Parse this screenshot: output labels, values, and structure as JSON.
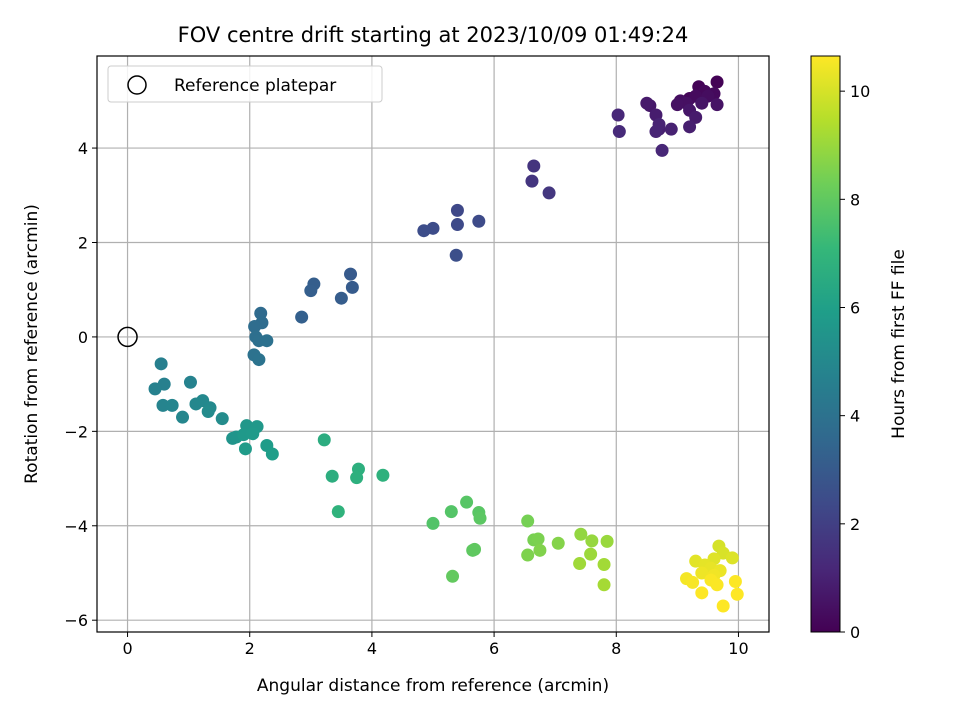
{
  "chart_data": {
    "type": "scatter",
    "title": "FOV centre drift starting at 2023/10/09 01:49:24",
    "xlabel": "Angular distance from reference (arcmin)",
    "ylabel": "Rotation from reference (arcmin)",
    "xlim": [
      -0.5,
      10.5
    ],
    "ylim": [
      -6.25,
      5.95
    ],
    "xticks": [
      0,
      2,
      4,
      6,
      8,
      10
    ],
    "yticks": [
      -6,
      -4,
      -2,
      0,
      2,
      4
    ],
    "grid": true,
    "legend": {
      "location": "upper-left",
      "entries": [
        "Reference platepar"
      ]
    },
    "colorbar": {
      "label": "Hours from first FF file",
      "colormap": "viridis",
      "range": [
        0,
        10.65
      ],
      "ticks": [
        0,
        2,
        4,
        6,
        8,
        10
      ]
    },
    "reference_point": {
      "x": 0,
      "y": 0
    },
    "points": [
      {
        "x": 9.65,
        "y": 5.4,
        "h": 0.05
      },
      {
        "x": 9.35,
        "y": 5.3,
        "h": 0.1
      },
      {
        "x": 9.2,
        "y": 5.05,
        "h": 0.15
      },
      {
        "x": 9.45,
        "y": 5.2,
        "h": 0.2
      },
      {
        "x": 9.6,
        "y": 5.15,
        "h": 0.25
      },
      {
        "x": 9.3,
        "y": 5.1,
        "h": 0.3
      },
      {
        "x": 9.5,
        "y": 5.1,
        "h": 0.35
      },
      {
        "x": 9.05,
        "y": 5.0,
        "h": 0.4
      },
      {
        "x": 9.15,
        "y": 4.95,
        "h": 0.45
      },
      {
        "x": 9.0,
        "y": 4.92,
        "h": 0.5
      },
      {
        "x": 9.65,
        "y": 4.92,
        "h": 0.55
      },
      {
        "x": 9.4,
        "y": 4.95,
        "h": 0.6
      },
      {
        "x": 9.2,
        "y": 4.8,
        "h": 0.65
      },
      {
        "x": 8.55,
        "y": 4.9,
        "h": 0.7
      },
      {
        "x": 8.5,
        "y": 4.95,
        "h": 0.75
      },
      {
        "x": 9.3,
        "y": 4.65,
        "h": 0.8
      },
      {
        "x": 8.65,
        "y": 4.7,
        "h": 0.85
      },
      {
        "x": 9.2,
        "y": 4.45,
        "h": 0.9
      },
      {
        "x": 8.7,
        "y": 4.4,
        "h": 0.95
      },
      {
        "x": 8.9,
        "y": 4.4,
        "h": 1.0
      },
      {
        "x": 8.7,
        "y": 4.5,
        "h": 1.05
      },
      {
        "x": 8.65,
        "y": 4.35,
        "h": 1.1
      },
      {
        "x": 8.75,
        "y": 3.95,
        "h": 1.15
      },
      {
        "x": 8.03,
        "y": 4.7,
        "h": 1.2
      },
      {
        "x": 8.05,
        "y": 4.35,
        "h": 1.25
      },
      {
        "x": 6.65,
        "y": 3.62,
        "h": 1.6
      },
      {
        "x": 6.62,
        "y": 3.3,
        "h": 1.65
      },
      {
        "x": 6.9,
        "y": 3.05,
        "h": 1.7
      },
      {
        "x": 5.4,
        "y": 2.68,
        "h": 2.3
      },
      {
        "x": 5.4,
        "y": 2.38,
        "h": 2.35
      },
      {
        "x": 5.75,
        "y": 2.45,
        "h": 2.4
      },
      {
        "x": 5.0,
        "y": 2.3,
        "h": 2.45
      },
      {
        "x": 4.85,
        "y": 2.25,
        "h": 2.5
      },
      {
        "x": 5.38,
        "y": 1.73,
        "h": 2.55
      },
      {
        "x": 3.65,
        "y": 1.33,
        "h": 3.0
      },
      {
        "x": 3.68,
        "y": 1.05,
        "h": 3.05
      },
      {
        "x": 3.5,
        "y": 0.82,
        "h": 3.1
      },
      {
        "x": 3.05,
        "y": 1.12,
        "h": 3.15
      },
      {
        "x": 3.0,
        "y": 0.98,
        "h": 3.2
      },
      {
        "x": 2.85,
        "y": 0.42,
        "h": 3.25
      },
      {
        "x": 2.18,
        "y": 0.5,
        "h": 3.7
      },
      {
        "x": 2.2,
        "y": 0.3,
        "h": 3.75
      },
      {
        "x": 2.08,
        "y": 0.22,
        "h": 3.8
      },
      {
        "x": 2.1,
        "y": 0.0,
        "h": 3.85
      },
      {
        "x": 2.15,
        "y": -0.08,
        "h": 3.9
      },
      {
        "x": 2.28,
        "y": -0.08,
        "h": 3.95
      },
      {
        "x": 2.07,
        "y": -0.38,
        "h": 4.0
      },
      {
        "x": 2.15,
        "y": -0.48,
        "h": 4.05
      },
      {
        "x": 0.55,
        "y": -0.57,
        "h": 4.6
      },
      {
        "x": 0.6,
        "y": -1.0,
        "h": 4.65
      },
      {
        "x": 0.45,
        "y": -1.1,
        "h": 4.7
      },
      {
        "x": 1.03,
        "y": -0.96,
        "h": 4.75
      },
      {
        "x": 0.58,
        "y": -1.45,
        "h": 4.8
      },
      {
        "x": 0.73,
        "y": -1.45,
        "h": 4.85
      },
      {
        "x": 0.9,
        "y": -1.7,
        "h": 4.9
      },
      {
        "x": 1.12,
        "y": -1.42,
        "h": 4.95
      },
      {
        "x": 1.23,
        "y": -1.35,
        "h": 5.0
      },
      {
        "x": 1.35,
        "y": -1.5,
        "h": 5.05
      },
      {
        "x": 1.32,
        "y": -1.58,
        "h": 5.1
      },
      {
        "x": 1.55,
        "y": -1.73,
        "h": 5.15
      },
      {
        "x": 1.72,
        "y": -2.15,
        "h": 5.5
      },
      {
        "x": 1.78,
        "y": -2.12,
        "h": 5.55
      },
      {
        "x": 1.95,
        "y": -1.88,
        "h": 5.6
      },
      {
        "x": 2.12,
        "y": -1.9,
        "h": 5.65
      },
      {
        "x": 1.9,
        "y": -2.07,
        "h": 5.7
      },
      {
        "x": 2.05,
        "y": -2.05,
        "h": 5.75
      },
      {
        "x": 1.93,
        "y": -2.37,
        "h": 5.8
      },
      {
        "x": 2.28,
        "y": -2.3,
        "h": 5.85
      },
      {
        "x": 2.37,
        "y": -2.48,
        "h": 5.9
      },
      {
        "x": 3.22,
        "y": -2.18,
        "h": 6.6
      },
      {
        "x": 3.35,
        "y": -2.95,
        "h": 6.65
      },
      {
        "x": 3.78,
        "y": -2.8,
        "h": 6.7
      },
      {
        "x": 3.75,
        "y": -2.98,
        "h": 6.75
      },
      {
        "x": 4.18,
        "y": -2.93,
        "h": 6.8
      },
      {
        "x": 3.45,
        "y": -3.7,
        "h": 6.85
      },
      {
        "x": 5.0,
        "y": -3.95,
        "h": 7.7
      },
      {
        "x": 5.3,
        "y": -3.7,
        "h": 7.75
      },
      {
        "x": 5.55,
        "y": -3.5,
        "h": 7.8
      },
      {
        "x": 5.75,
        "y": -3.72,
        "h": 7.85
      },
      {
        "x": 5.77,
        "y": -3.84,
        "h": 7.9
      },
      {
        "x": 5.65,
        "y": -4.52,
        "h": 7.95
      },
      {
        "x": 5.68,
        "y": -4.5,
        "h": 8.0
      },
      {
        "x": 5.32,
        "y": -5.07,
        "h": 8.05
      },
      {
        "x": 6.55,
        "y": -3.9,
        "h": 8.4
      },
      {
        "x": 6.65,
        "y": -4.3,
        "h": 8.45
      },
      {
        "x": 6.72,
        "y": -4.28,
        "h": 8.5
      },
      {
        "x": 6.55,
        "y": -4.62,
        "h": 8.55
      },
      {
        "x": 6.75,
        "y": -4.52,
        "h": 8.6
      },
      {
        "x": 7.05,
        "y": -4.37,
        "h": 8.65
      },
      {
        "x": 7.42,
        "y": -4.18,
        "h": 8.9
      },
      {
        "x": 7.6,
        "y": -4.32,
        "h": 8.95
      },
      {
        "x": 7.85,
        "y": -4.33,
        "h": 9.0
      },
      {
        "x": 7.58,
        "y": -4.6,
        "h": 9.05
      },
      {
        "x": 7.4,
        "y": -4.8,
        "h": 9.1
      },
      {
        "x": 7.8,
        "y": -4.82,
        "h": 9.15
      },
      {
        "x": 7.8,
        "y": -5.25,
        "h": 9.2
      },
      {
        "x": 9.68,
        "y": -4.43,
        "h": 10.0
      },
      {
        "x": 9.75,
        "y": -4.58,
        "h": 10.05
      },
      {
        "x": 9.9,
        "y": -4.68,
        "h": 10.1
      },
      {
        "x": 9.6,
        "y": -4.7,
        "h": 10.15
      },
      {
        "x": 9.3,
        "y": -4.75,
        "h": 10.2
      },
      {
        "x": 9.45,
        "y": -4.83,
        "h": 10.25
      },
      {
        "x": 9.55,
        "y": -4.9,
        "h": 10.3
      },
      {
        "x": 9.7,
        "y": -4.95,
        "h": 10.35
      },
      {
        "x": 9.4,
        "y": -5.0,
        "h": 10.4
      },
      {
        "x": 9.6,
        "y": -5.05,
        "h": 10.45
      },
      {
        "x": 9.15,
        "y": -5.12,
        "h": 10.5
      },
      {
        "x": 9.25,
        "y": -5.2,
        "h": 10.55
      },
      {
        "x": 9.55,
        "y": -5.15,
        "h": 10.6
      },
      {
        "x": 9.65,
        "y": -5.25,
        "h": 10.62
      },
      {
        "x": 9.95,
        "y": -5.18,
        "h": 10.64
      },
      {
        "x": 9.4,
        "y": -5.42,
        "h": 10.65
      },
      {
        "x": 9.98,
        "y": -5.45,
        "h": 10.65
      },
      {
        "x": 9.75,
        "y": -5.7,
        "h": 10.65
      }
    ]
  }
}
